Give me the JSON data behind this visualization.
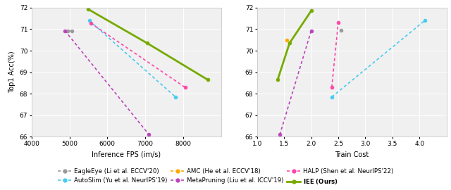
{
  "left_plot": {
    "xlabel": "Inference FPS (im/s)",
    "ylabel": "Top1 Acc(%)",
    "xlim": [
      4000,
      9000
    ],
    "ylim": [
      66,
      72
    ],
    "yticks": [
      66,
      67,
      68,
      69,
      70,
      71,
      72
    ],
    "xticks": [
      4000,
      5000,
      6000,
      7000,
      8000
    ],
    "series": {
      "EagleEye": {
        "x": [
          4950,
          5060
        ],
        "y": [
          70.93,
          70.91
        ],
        "color": "#999999",
        "linestyle": "dotted",
        "marker": "o",
        "markersize": 3.5,
        "linewidth": 1.2
      },
      "MetaPruning": {
        "x": [
          4880,
          7100
        ],
        "y": [
          70.93,
          66.1
        ],
        "color": "#bb44bb",
        "linestyle": "dotted",
        "marker": "o",
        "markersize": 3.5,
        "linewidth": 1.2
      },
      "AutoSlim": {
        "x": [
          5520,
          7800
        ],
        "y": [
          71.4,
          67.85
        ],
        "color": "#44ccee",
        "linestyle": "dotted",
        "marker": "o",
        "markersize": 3.5,
        "linewidth": 1.2
      },
      "HALP": {
        "x": [
          5560,
          8050
        ],
        "y": [
          71.28,
          68.3
        ],
        "color": "#ff44aa",
        "linestyle": "dotted",
        "marker": "o",
        "markersize": 3.5,
        "linewidth": 1.2
      },
      "IEE": {
        "x": [
          5500,
          7050,
          8650
        ],
        "y": [
          71.92,
          70.35,
          68.65
        ],
        "color": "#77aa00",
        "linestyle": "solid",
        "marker": "o",
        "markersize": 3.5,
        "linewidth": 2.0
      }
    }
  },
  "right_plot": {
    "xlabel": "Train Cost",
    "ylabel": "",
    "xlim": [
      1,
      4.5
    ],
    "ylim": [
      66,
      72
    ],
    "yticks": [
      66,
      67,
      68,
      69,
      70,
      71,
      72
    ],
    "xticks": [
      1,
      1.5,
      2,
      2.5,
      3,
      3.5,
      4
    ],
    "series": {
      "EagleEye": {
        "x": [
          2.55
        ],
        "y": [
          70.95
        ],
        "color": "#999999",
        "linestyle": "dotted",
        "marker": "o",
        "markersize": 3.5,
        "linewidth": 1.2
      },
      "MetaPruning": {
        "x": [
          1.42,
          2.0
        ],
        "y": [
          66.1,
          70.93
        ],
        "color": "#bb44bb",
        "linestyle": "dotted",
        "marker": "o",
        "markersize": 3.5,
        "linewidth": 1.2
      },
      "AMC": {
        "x": [
          1.55
        ],
        "y": [
          70.5
        ],
        "color": "#ffaa00",
        "linestyle": "dotted",
        "marker": "o",
        "markersize": 3.5,
        "linewidth": 1.2
      },
      "AutoSlim": {
        "x": [
          2.38,
          4.1
        ],
        "y": [
          67.85,
          71.4
        ],
        "color": "#44ccee",
        "linestyle": "dotted",
        "marker": "o",
        "markersize": 3.5,
        "linewidth": 1.2
      },
      "HALP": {
        "x": [
          2.38,
          2.5
        ],
        "y": [
          68.3,
          71.3
        ],
        "color": "#ff44aa",
        "linestyle": "dotted",
        "marker": "o",
        "markersize": 3.5,
        "linewidth": 1.2
      },
      "IEE": {
        "x": [
          1.38,
          1.6,
          2.0
        ],
        "y": [
          68.65,
          70.35,
          71.85
        ],
        "color": "#77aa00",
        "linestyle": "solid",
        "marker": "o",
        "markersize": 3.5,
        "linewidth": 2.0
      }
    }
  },
  "legend": {
    "EagleEye": {
      "label": "EagleEye (Li et al. ECCV'20)",
      "color": "#999999",
      "linestyle": "dotted"
    },
    "AutoSlim": {
      "label": "AutoSlim (Yu et al. NeurIPS'19)",
      "color": "#44ccee",
      "linestyle": "dotted"
    },
    "AMC": {
      "label": "AMC (He et al. ECCV'18)",
      "color": "#ffaa00",
      "linestyle": "dotted"
    },
    "MetaPruning": {
      "label": "MetaPruning (Liu et al. ICCV'19)",
      "color": "#bb44bb",
      "linestyle": "dotted"
    },
    "HALP": {
      "label": "HALP (Shen et al. NeurIPS'22)",
      "color": "#ff44aa",
      "linestyle": "dotted"
    },
    "IEE": {
      "label": "IEE (Ours)",
      "color": "#77aa00",
      "linestyle": "solid"
    }
  },
  "legend_order": [
    "EagleEye",
    "AutoSlim",
    "AMC",
    "MetaPruning",
    "HALP",
    "IEE"
  ],
  "background_color": "#f0f0f0"
}
